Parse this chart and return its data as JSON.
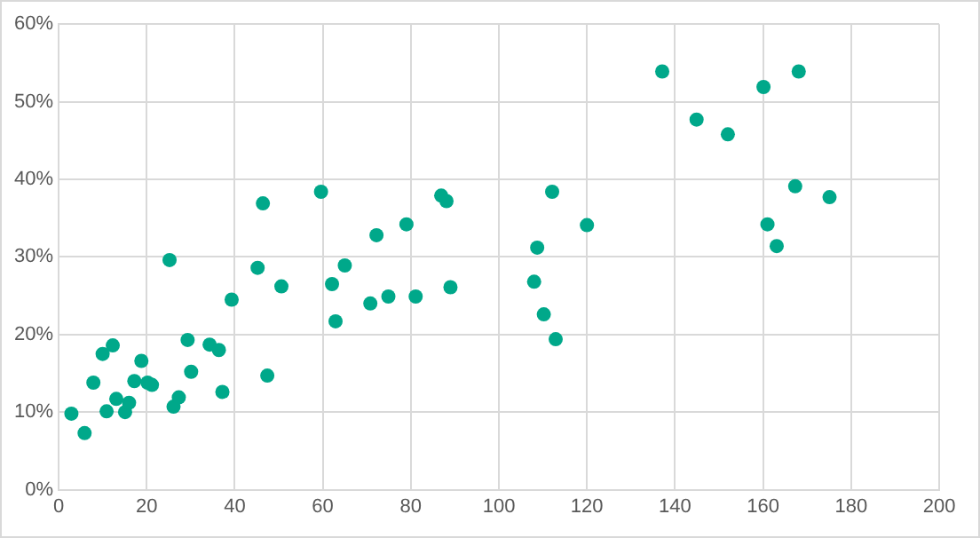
{
  "chart_data": {
    "type": "scatter",
    "xlim": [
      0,
      200
    ],
    "xticks": [
      0,
      20,
      40,
      60,
      80,
      100,
      120,
      140,
      160,
      180,
      200
    ],
    "ylim": [
      0,
      60
    ],
    "yticks": [
      {
        "value": 0,
        "label": "0%"
      },
      {
        "value": 10,
        "label": "10%"
      },
      {
        "value": 20,
        "label": "20%"
      },
      {
        "value": 30,
        "label": "30%"
      },
      {
        "value": 40,
        "label": "40%"
      },
      {
        "value": 50,
        "label": "50%"
      },
      {
        "value": 60,
        "label": "60%"
      }
    ],
    "grid": true,
    "legend": false,
    "marker": "circle",
    "series": [
      {
        "color": "#00a88a",
        "x": [
          2.9,
          5.9,
          7.9,
          10,
          10.9,
          12.3,
          13.1,
          15.1,
          16,
          17.2,
          18.8,
          20.2,
          21.2,
          25.2,
          26.1,
          27.3,
          29.3,
          30.1,
          34.3,
          36.4,
          37.2,
          39.3,
          45.2,
          46.4,
          47.4,
          50.6,
          59.6,
          62.1,
          62.9,
          65,
          70.8,
          72.2,
          74.9,
          79,
          81.1,
          86.9,
          88.1,
          89,
          108,
          108.7,
          110.2,
          112.1,
          112.9,
          120,
          137.1,
          144.9,
          152,
          160.1,
          168.1,
          167.3,
          175.1,
          161,
          163.1
        ],
        "values": [
          9.8,
          7.3,
          13.8,
          17.5,
          10.1,
          18.6,
          11.7,
          10,
          11.2,
          14,
          16.6,
          13.8,
          13.5,
          29.6,
          10.7,
          11.9,
          19.3,
          15.2,
          18.7,
          18,
          12.6,
          24.5,
          28.6,
          36.9,
          14.7,
          26.2,
          38.4,
          26.5,
          21.7,
          28.9,
          24,
          32.8,
          24.9,
          34.2,
          24.9,
          37.9,
          37.2,
          26.1,
          26.8,
          31.2,
          22.6,
          38.4,
          19.4,
          34.1,
          53.9,
          47.7,
          45.8,
          51.9,
          53.9,
          39.1,
          37.7,
          34.2,
          31.4
        ]
      }
    ]
  }
}
